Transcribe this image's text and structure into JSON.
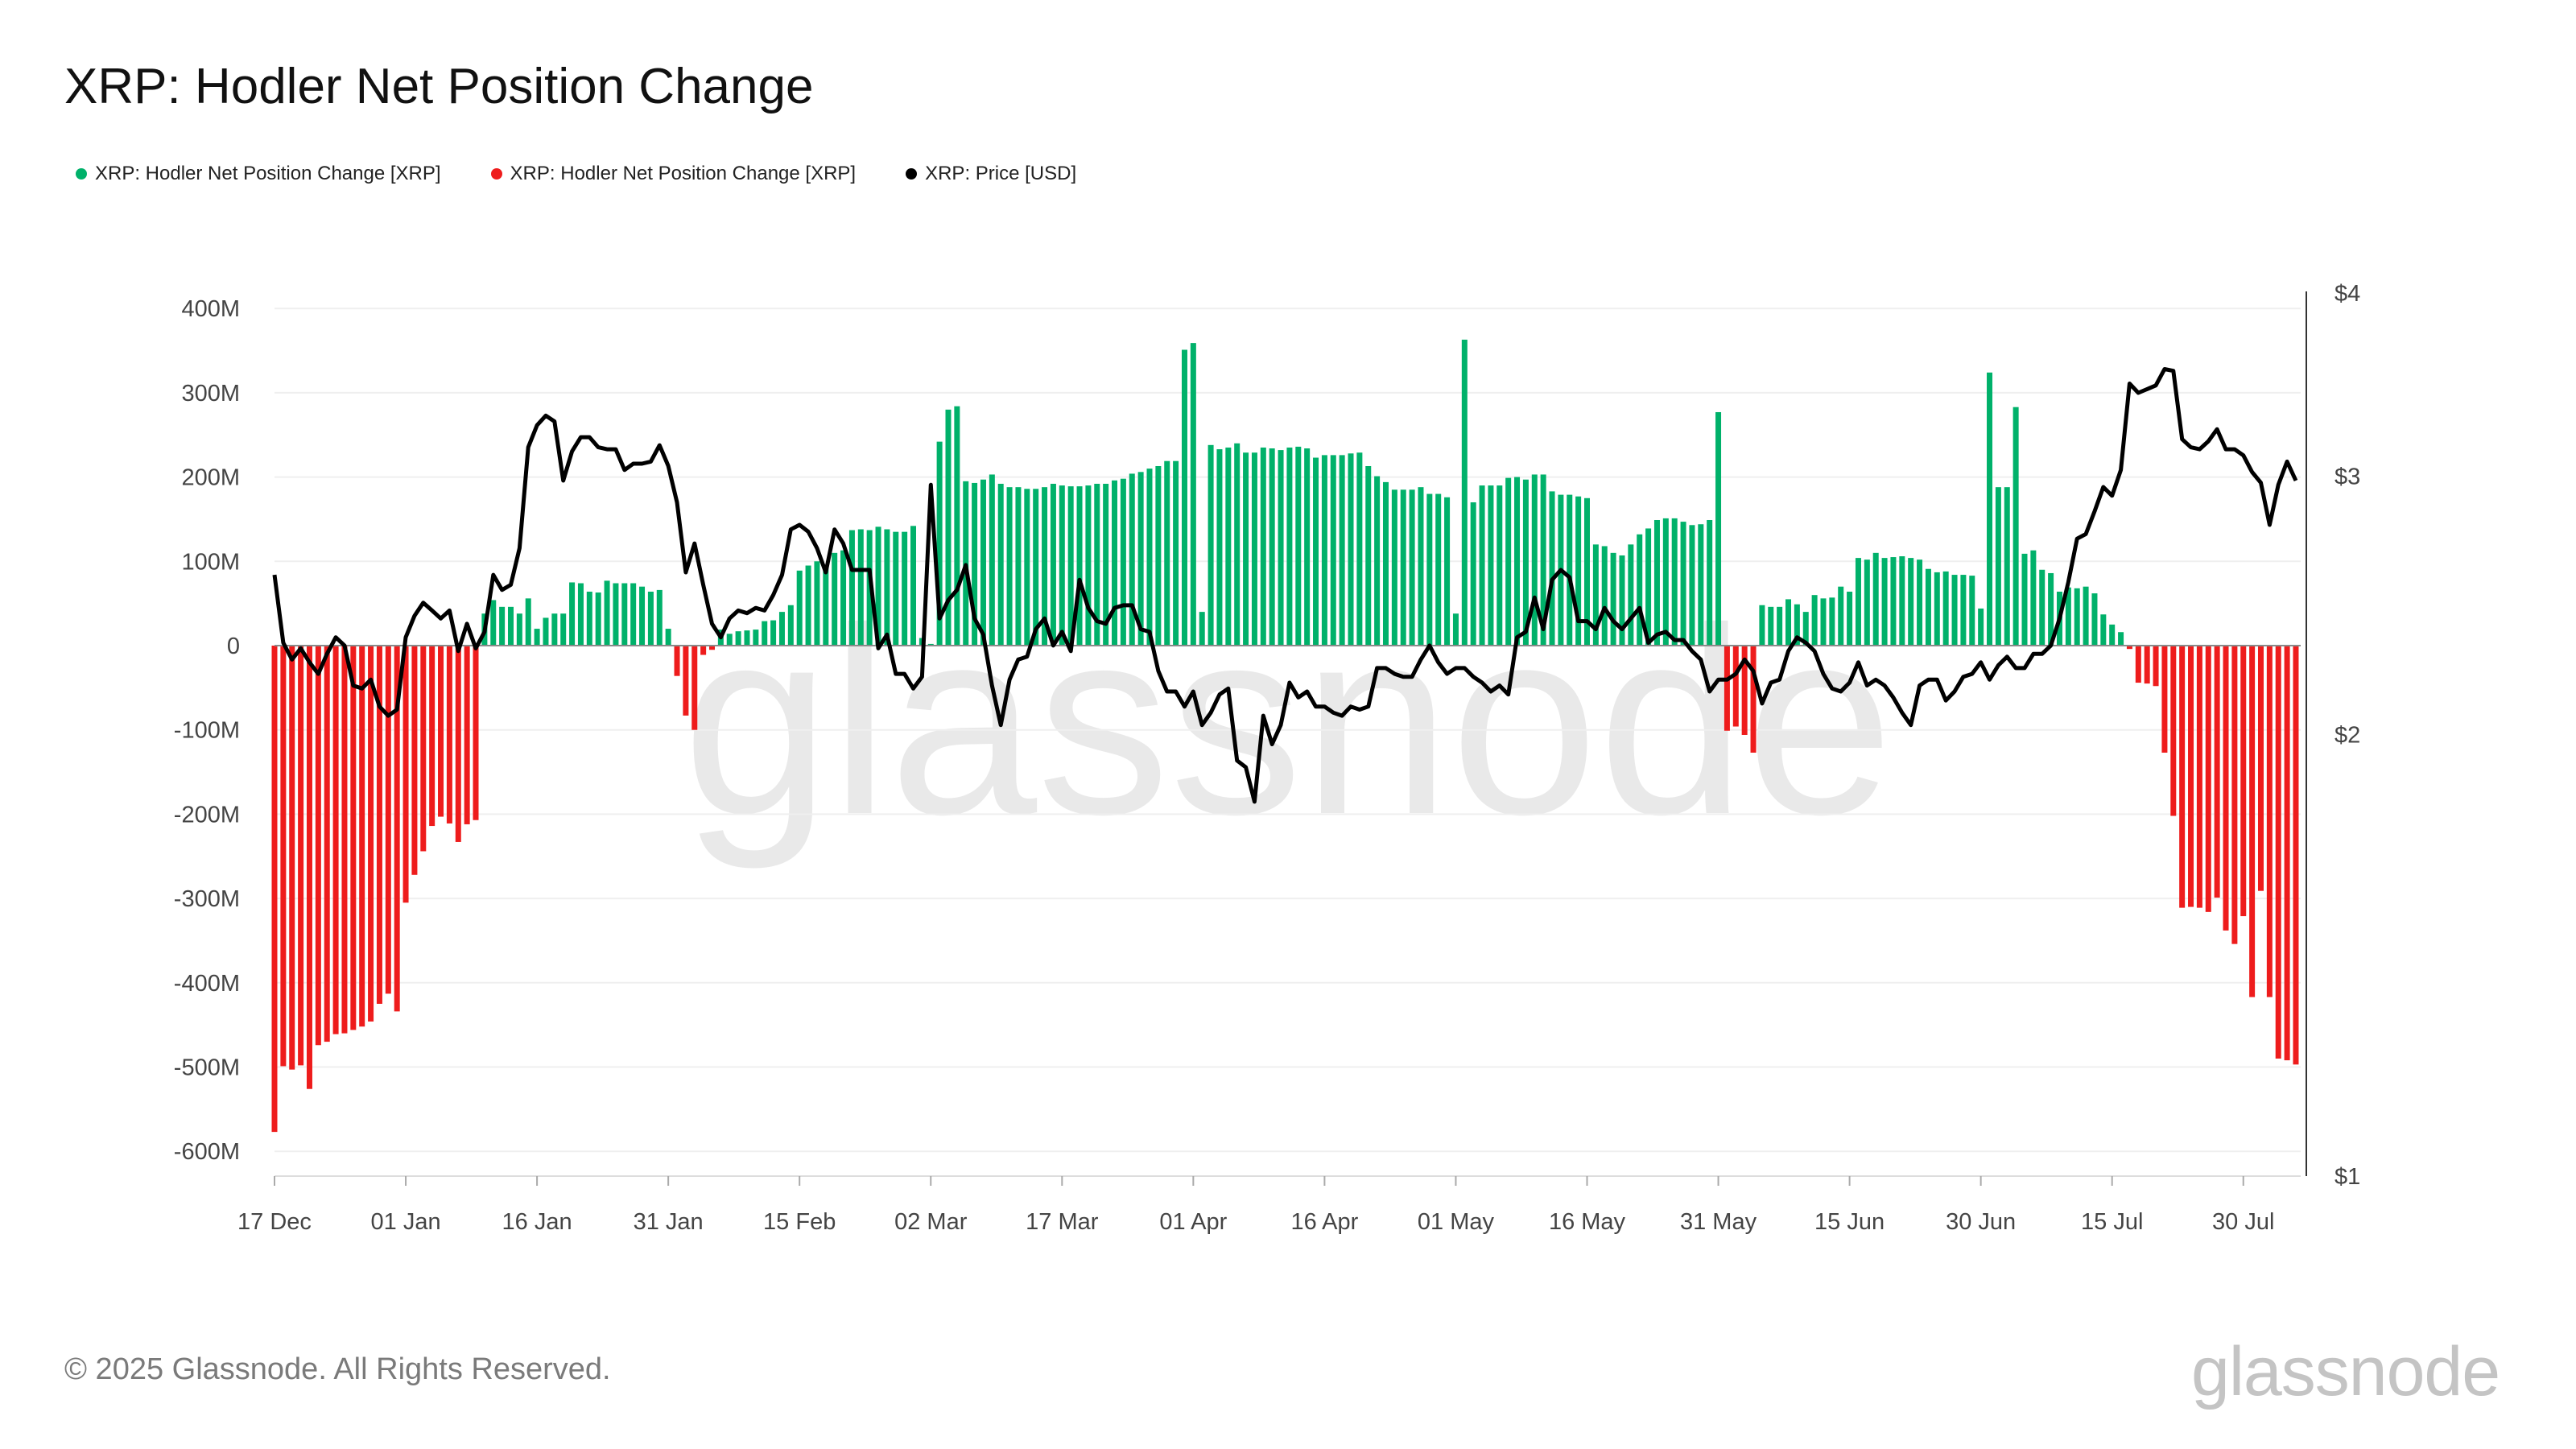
{
  "title": "XRP: Hodler Net Position Change",
  "legend": [
    {
      "label": "XRP: Hodler Net Position Change [XRP]",
      "color": "#00b16a"
    },
    {
      "label": "XRP: Hodler Net Position Change [XRP]",
      "color": "#ee1c1c"
    },
    {
      "label": "XRP: Price [USD]",
      "color": "#000000"
    }
  ],
  "footer": "© 2025 Glassnode. All Rights Reserved.",
  "logo": "glassnode",
  "watermark": "glassnode",
  "chart_data": {
    "type": "bar+line",
    "title": "XRP: Hodler Net Position Change",
    "grid": true,
    "legend_position": "top-left",
    "x_tick_labels": [
      "17 Dec",
      "01 Jan",
      "16 Jan",
      "31 Jan",
      "15 Feb",
      "02 Mar",
      "17 Mar",
      "01 Apr",
      "16 Apr",
      "01 May",
      "16 May",
      "31 May",
      "15 Jun",
      "30 Jun",
      "15 Jul",
      "30 Jul"
    ],
    "y_left": {
      "ticks": [
        400,
        300,
        200,
        100,
        0,
        -100,
        -200,
        -300,
        -400,
        -500,
        -600
      ],
      "tick_labels": [
        "400M",
        "300M",
        "200M",
        "100M",
        "0",
        "-100M",
        "-200M",
        "-300M",
        "-400M",
        "-500M",
        "-600M"
      ],
      "range": [
        -630,
        420
      ],
      "unit": "M XRP"
    },
    "y_right": {
      "scale": "log",
      "ticks": [
        4,
        3,
        2,
        1
      ],
      "tick_labels": [
        "$4",
        "$3",
        "$2",
        "$1"
      ],
      "range": [
        1,
        4.1
      ]
    },
    "x": [
      "17 Dec",
      "18 Dec",
      "19 Dec",
      "20 Dec",
      "21 Dec",
      "22 Dec",
      "23 Dec",
      "24 Dec",
      "25 Dec",
      "26 Dec",
      "27 Dec",
      "28 Dec",
      "29 Dec",
      "30 Dec",
      "31 Dec",
      "01 Jan",
      "02 Jan",
      "03 Jan",
      "04 Jan",
      "05 Jan",
      "06 Jan",
      "07 Jan",
      "08 Jan",
      "09 Jan",
      "10 Jan",
      "11 Jan",
      "12 Jan",
      "13 Jan",
      "14 Jan",
      "15 Jan",
      "16 Jan",
      "17 Jan",
      "18 Jan",
      "19 Jan",
      "20 Jan",
      "21 Jan",
      "22 Jan",
      "23 Jan",
      "24 Jan",
      "25 Jan",
      "26 Jan",
      "27 Jan",
      "28 Jan",
      "29 Jan",
      "30 Jan",
      "31 Jan",
      "01 Feb",
      "02 Feb",
      "03 Feb",
      "04 Feb",
      "05 Feb",
      "06 Feb",
      "07 Feb",
      "08 Feb",
      "09 Feb",
      "10 Feb",
      "11 Feb",
      "12 Feb",
      "13 Feb",
      "14 Feb",
      "15 Feb",
      "16 Feb",
      "17 Feb",
      "18 Feb",
      "19 Feb",
      "20 Feb",
      "21 Feb",
      "22 Feb",
      "23 Feb",
      "24 Feb",
      "25 Feb",
      "26 Feb",
      "27 Feb",
      "28 Feb",
      "01 Mar",
      "02 Mar",
      "03 Mar",
      "04 Mar",
      "05 Mar",
      "06 Mar",
      "07 Mar",
      "08 Mar",
      "09 Mar",
      "10 Mar",
      "11 Mar",
      "12 Mar",
      "13 Mar",
      "14 Mar",
      "15 Mar",
      "16 Mar",
      "17 Mar",
      "18 Mar",
      "19 Mar",
      "20 Mar",
      "21 Mar",
      "22 Mar",
      "23 Mar",
      "24 Mar",
      "25 Mar",
      "26 Mar",
      "27 Mar",
      "28 Mar",
      "29 Mar",
      "30 Mar",
      "31 Mar",
      "01 Apr",
      "02 Apr",
      "03 Apr",
      "04 Apr",
      "05 Apr",
      "06 Apr",
      "07 Apr",
      "08 Apr",
      "09 Apr",
      "10 Apr",
      "11 Apr",
      "12 Apr",
      "13 Apr",
      "14 Apr",
      "15 Apr",
      "16 Apr",
      "17 Apr",
      "18 Apr",
      "19 Apr",
      "20 Apr",
      "21 Apr",
      "22 Apr",
      "23 Apr",
      "24 Apr",
      "25 Apr",
      "26 Apr",
      "27 Apr",
      "28 Apr",
      "29 Apr",
      "30 Apr",
      "01 May",
      "02 May",
      "03 May",
      "04 May",
      "05 May",
      "06 May",
      "07 May",
      "08 May",
      "09 May",
      "10 May",
      "11 May",
      "12 May",
      "13 May",
      "14 May",
      "15 May",
      "16 May",
      "17 May",
      "18 May",
      "19 May",
      "20 May",
      "21 May",
      "22 May",
      "23 May",
      "24 May",
      "25 May",
      "26 May",
      "27 May",
      "28 May",
      "29 May",
      "30 May",
      "31 May",
      "01 Jun",
      "02 Jun",
      "03 Jun",
      "04 Jun",
      "05 Jun",
      "06 Jun",
      "07 Jun",
      "08 Jun",
      "09 Jun",
      "10 Jun",
      "11 Jun",
      "12 Jun",
      "13 Jun",
      "14 Jun",
      "15 Jun",
      "16 Jun",
      "17 Jun",
      "18 Jun",
      "19 Jun",
      "20 Jun",
      "21 Jun",
      "22 Jun",
      "23 Jun",
      "24 Jun",
      "25 Jun",
      "26 Jun",
      "27 Jun",
      "28 Jun",
      "29 Jun",
      "30 Jun",
      "01 Jul",
      "02 Jul",
      "03 Jul",
      "04 Jul",
      "05 Jul",
      "06 Jul",
      "07 Jul",
      "08 Jul",
      "09 Jul",
      "10 Jul",
      "11 Jul",
      "12 Jul",
      "13 Jul",
      "14 Jul",
      "15 Jul",
      "16 Jul",
      "17 Jul",
      "18 Jul",
      "19 Jul",
      "20 Jul",
      "21 Jul",
      "22 Jul",
      "23 Jul",
      "24 Jul",
      "25 Jul",
      "26 Jul",
      "27 Jul",
      "28 Jul",
      "29 Jul",
      "30 Jul",
      "31 Jul",
      "01 Aug",
      "02 Aug",
      "03 Aug",
      "04 Aug",
      "05 Aug"
    ],
    "series": [
      {
        "name": "XRP: Hodler Net Position Change [XRP]",
        "type": "bar",
        "axis": "left",
        "positive_color": "#00b16a",
        "negative_color": "#ee1c1c",
        "values": [
          -577,
          -499,
          -503,
          -498,
          -526,
          -474,
          -470,
          -461,
          -460,
          -456,
          -452,
          -446,
          -425,
          -413,
          -434,
          -305,
          -272,
          -244,
          -214,
          -203,
          -211,
          -233,
          -212,
          -207,
          38,
          54,
          46,
          46,
          38,
          56,
          20,
          33,
          38,
          38,
          75,
          74,
          64,
          63,
          77,
          74,
          74,
          74,
          70,
          64,
          66,
          20,
          -36,
          -83,
          -100,
          -11,
          -5,
          19,
          14,
          17,
          18,
          19,
          29,
          30,
          40,
          48,
          89,
          95,
          100,
          92,
          110,
          113,
          137,
          138,
          137,
          141,
          138,
          135,
          135,
          142,
          9,
          2,
          242,
          280,
          284,
          195,
          193,
          197,
          203,
          192,
          188,
          188,
          186,
          186,
          188,
          192,
          190,
          189,
          189,
          190,
          192,
          192,
          196,
          198,
          204,
          206,
          210,
          213,
          219,
          219,
          351,
          359,
          40,
          238,
          233,
          235,
          240,
          229,
          229,
          235,
          234,
          232,
          235,
          236,
          234,
          223,
          226,
          226,
          226,
          228,
          229,
          213,
          201,
          194,
          185,
          185,
          185,
          188,
          180,
          180,
          176,
          38,
          363,
          170,
          190,
          190,
          190,
          199,
          200,
          197,
          203,
          203,
          183,
          179,
          179,
          177,
          175,
          120,
          118,
          110,
          107,
          120,
          132,
          139,
          149,
          151,
          151,
          147,
          143,
          144,
          149,
          277,
          -101,
          -96,
          -106,
          -127,
          48,
          46,
          46,
          55,
          49,
          40,
          60,
          56,
          57,
          70,
          64,
          104,
          102,
          110,
          104,
          105,
          106,
          104,
          102,
          91,
          87,
          88,
          84,
          84,
          83,
          44,
          324,
          188,
          188,
          283,
          109,
          113,
          90,
          86,
          64,
          69,
          68,
          70,
          62,
          37,
          25,
          16,
          -4,
          -44,
          -45,
          -48,
          -127,
          -202,
          -311,
          -310,
          -311,
          -316,
          -299,
          -338,
          -354,
          -321,
          -417,
          -291,
          -417,
          -490,
          -492,
          -497
        ]
      },
      {
        "name": "XRP: Price [USD]",
        "type": "line",
        "axis": "right",
        "color": "#000000",
        "values": [
          2.57,
          2.31,
          2.25,
          2.29,
          2.24,
          2.2,
          2.27,
          2.33,
          2.3,
          2.16,
          2.15,
          2.18,
          2.09,
          2.06,
          2.08,
          2.33,
          2.41,
          2.46,
          2.43,
          2.4,
          2.43,
          2.28,
          2.38,
          2.29,
          2.35,
          2.57,
          2.51,
          2.53,
          2.68,
          3.14,
          3.25,
          3.3,
          3.27,
          2.98,
          3.12,
          3.19,
          3.19,
          3.14,
          3.13,
          3.13,
          3.03,
          3.06,
          3.06,
          3.07,
          3.15,
          3.05,
          2.88,
          2.58,
          2.7,
          2.53,
          2.38,
          2.33,
          2.4,
          2.43,
          2.42,
          2.44,
          2.43,
          2.49,
          2.57,
          2.76,
          2.78,
          2.75,
          2.68,
          2.58,
          2.76,
          2.7,
          2.59,
          2.59,
          2.59,
          2.29,
          2.34,
          2.2,
          2.2,
          2.15,
          2.19,
          2.96,
          2.4,
          2.47,
          2.51,
          2.61,
          2.4,
          2.34,
          2.16,
          2.03,
          2.18,
          2.25,
          2.26,
          2.36,
          2.4,
          2.3,
          2.35,
          2.28,
          2.55,
          2.44,
          2.39,
          2.38,
          2.44,
          2.45,
          2.45,
          2.36,
          2.35,
          2.21,
          2.14,
          2.14,
          2.09,
          2.14,
          2.03,
          2.07,
          2.13,
          2.15,
          1.92,
          1.9,
          1.8,
          2.06,
          1.97,
          2.03,
          2.17,
          2.12,
          2.14,
          2.09,
          2.09,
          2.07,
          2.06,
          2.09,
          2.08,
          2.09,
          2.22,
          2.22,
          2.2,
          2.19,
          2.19,
          2.25,
          2.3,
          2.24,
          2.2,
          2.22,
          2.22,
          2.19,
          2.17,
          2.14,
          2.16,
          2.13,
          2.33,
          2.35,
          2.48,
          2.36,
          2.55,
          2.59,
          2.56,
          2.39,
          2.39,
          2.36,
          2.44,
          2.39,
          2.36,
          2.4,
          2.44,
          2.31,
          2.34,
          2.35,
          2.32,
          2.32,
          2.28,
          2.25,
          2.14,
          2.18,
          2.18,
          2.2,
          2.25,
          2.21,
          2.1,
          2.17,
          2.18,
          2.28,
          2.33,
          2.31,
          2.28,
          2.2,
          2.15,
          2.14,
          2.17,
          2.24,
          2.16,
          2.18,
          2.16,
          2.12,
          2.07,
          2.03,
          2.16,
          2.18,
          2.18,
          2.11,
          2.14,
          2.19,
          2.2,
          2.24,
          2.18,
          2.23,
          2.26,
          2.22,
          2.22,
          2.27,
          2.27,
          2.3,
          2.4,
          2.54,
          2.72,
          2.74,
          2.84,
          2.95,
          2.91,
          3.03,
          3.47,
          3.42,
          3.44,
          3.46,
          3.55,
          3.54,
          3.18,
          3.14,
          3.13,
          3.17,
          3.23,
          3.13,
          3.13,
          3.1,
          3.02,
          2.97,
          2.78,
          2.96,
          3.07,
          2.98
        ]
      }
    ]
  }
}
